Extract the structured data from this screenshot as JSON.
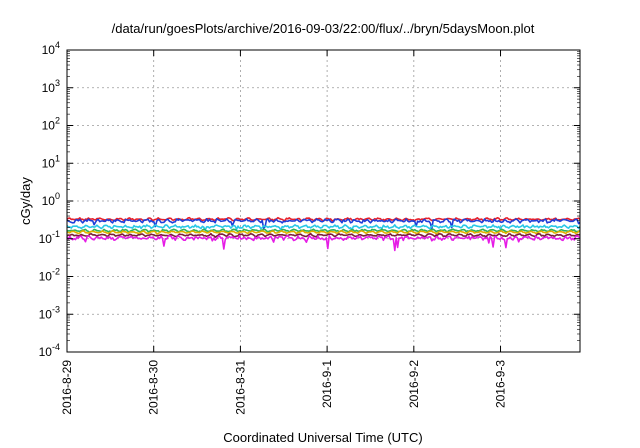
{
  "chart_data": {
    "type": "line",
    "title": "/data/run/goesPlots/archive/2016-09-03/22:00/flux/../bryn/5daysMoon.plot",
    "xlabel": "Coordinated Universal Time (UTC)",
    "ylabel": "cGy/day",
    "yscale": "log",
    "ylim": [
      0.0001,
      10000
    ],
    "xlim": [
      "2016-08-29 00:00",
      "2016-09-03 22:00"
    ],
    "grid": true,
    "y_ticks": [
      {
        "base": "10",
        "exp": "-4"
      },
      {
        "base": "10",
        "exp": "-3"
      },
      {
        "base": "10",
        "exp": "-2"
      },
      {
        "base": "10",
        "exp": "-1"
      },
      {
        "base": "10",
        "exp": "0"
      },
      {
        "base": "10",
        "exp": "1"
      },
      {
        "base": "10",
        "exp": "2"
      },
      {
        "base": "10",
        "exp": "3"
      },
      {
        "base": "10",
        "exp": "4"
      }
    ],
    "x_ticks": [
      "2016-8-29",
      "2016-8-30",
      "2016-8-31",
      "2016-9-1",
      "2016-9-2",
      "2016-9-3"
    ],
    "series": [
      {
        "color": "#e8202a",
        "level": 0.33,
        "noise": 0.1,
        "dips": 0.1
      },
      {
        "color": "#1f3fd8",
        "level": 0.3,
        "noise": 0.16,
        "dips": 0.35
      },
      {
        "color": "#27c8e6",
        "level": 0.21,
        "noise": 0.12,
        "dips": 0.25
      },
      {
        "color": "#2eb25a",
        "level": 0.165,
        "noise": 0.08,
        "dips": 0.1
      },
      {
        "color": "#e0b000",
        "level": 0.15,
        "noise": 0.06,
        "dips": 0.05
      },
      {
        "color": "#7a1f3a",
        "level": 0.125,
        "noise": 0.08,
        "dips": 0.08
      },
      {
        "color": "#e61ce6",
        "level": 0.105,
        "noise": 0.2,
        "dips": 0.5
      }
    ]
  }
}
